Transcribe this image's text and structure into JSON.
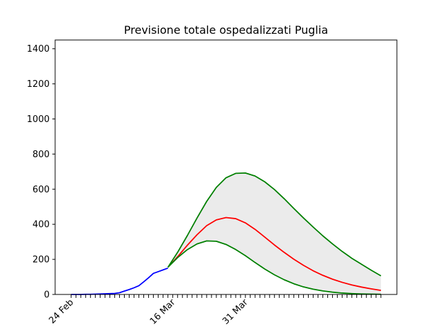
{
  "chart_data": {
    "type": "line",
    "title": "Previsione totale ospedalizzati Puglia",
    "xlabel": "",
    "ylabel": "",
    "ylim": [
      0,
      1450
    ],
    "yticks": [
      0,
      200,
      400,
      600,
      800,
      1000,
      1200,
      1400
    ],
    "xlim": [
      -3.3,
      67.3
    ],
    "xticks": [
      {
        "day": 0,
        "label": "24 Feb"
      },
      {
        "day": 21,
        "label": "16 Mar"
      },
      {
        "day": 36,
        "label": "31 Mar"
      }
    ],
    "minor_tick_days": [
      0,
      1,
      2,
      3,
      4,
      5,
      6,
      7,
      8,
      9,
      10,
      11,
      12,
      13,
      14,
      15,
      16,
      17,
      18,
      19,
      20,
      21,
      22,
      23,
      24,
      25,
      26,
      27,
      28,
      29,
      30,
      31,
      32,
      33,
      34,
      35,
      36,
      37,
      38,
      39,
      40,
      41,
      42,
      43,
      44,
      45,
      46,
      47,
      48,
      49,
      50,
      51,
      52,
      53,
      54,
      55,
      56,
      57,
      58,
      59,
      60,
      61,
      62,
      63,
      64
    ],
    "grid": false,
    "legend": "none",
    "series": [
      {
        "role": "observed",
        "color": "#0000ff",
        "x": [
          0,
          1,
          2,
          3,
          4,
          5,
          6,
          7,
          8,
          9,
          10,
          11,
          12,
          13,
          14,
          15,
          16,
          17,
          18,
          19,
          20
        ],
        "y": [
          0,
          0,
          0,
          1,
          1,
          2,
          3,
          4,
          5,
          6,
          10,
          19,
          28,
          38,
          50,
          72,
          95,
          120,
          130,
          140,
          150
        ]
      },
      {
        "role": "forecast",
        "color": "#ff0000",
        "x": [
          20,
          22,
          24,
          26,
          28,
          30,
          32,
          34,
          36,
          38,
          40,
          42,
          44,
          46,
          48,
          50,
          52,
          54,
          56,
          58,
          60,
          62,
          64
        ],
        "y": [
          155,
          215,
          280,
          340,
          392,
          425,
          438,
          432,
          408,
          371,
          327,
          282,
          240,
          201,
          166,
          135,
          109,
          87,
          69,
          54,
          42,
          32,
          23
        ]
      },
      {
        "role": "upper_bound",
        "color": "#008000",
        "x": [
          20,
          22,
          24,
          26,
          28,
          30,
          32,
          34,
          36,
          38,
          40,
          42,
          44,
          46,
          48,
          50,
          52,
          54,
          56,
          58,
          60,
          62,
          64
        ],
        "y": [
          155,
          240,
          335,
          435,
          530,
          610,
          665,
          690,
          692,
          675,
          642,
          598,
          546,
          490,
          436,
          384,
          334,
          288,
          245,
          206,
          172,
          138,
          106
        ]
      },
      {
        "role": "lower_bound",
        "color": "#008000",
        "x": [
          20,
          22,
          24,
          26,
          28,
          30,
          32,
          34,
          36,
          38,
          40,
          42,
          44,
          46,
          48,
          50,
          52,
          54,
          56,
          58,
          60,
          62,
          64
        ],
        "y": [
          155,
          210,
          255,
          288,
          305,
          303,
          285,
          256,
          221,
          182,
          145,
          112,
          84,
          61,
          43,
          30,
          20,
          13,
          8,
          5,
          3,
          2,
          1
        ]
      }
    ],
    "band": {
      "color": "#ebebeb",
      "between": [
        "lower_bound",
        "upper_bound"
      ]
    }
  }
}
